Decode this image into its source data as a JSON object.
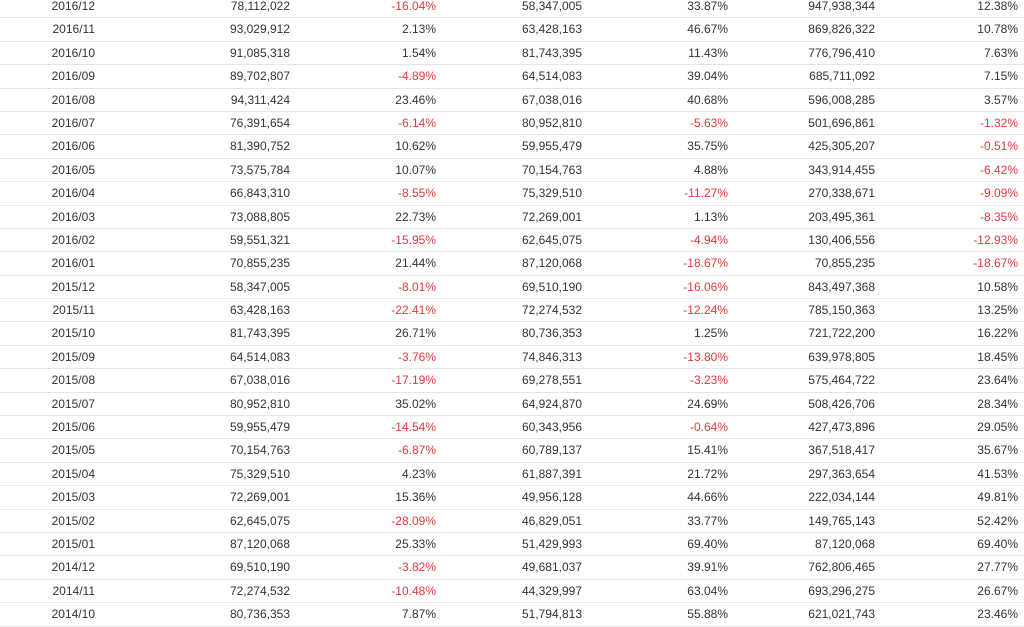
{
  "colors": {
    "negative": "#e4393c",
    "text": "#333333",
    "row_border": "#e6e6e6"
  },
  "rows": [
    [
      "2016/12",
      "78,112,022",
      "-16.04%",
      "58,347,005",
      "33.87%",
      "947,938,344",
      "12.38%"
    ],
    [
      "2016/11",
      "93,029,912",
      "2.13%",
      "63,428,163",
      "46.67%",
      "869,826,322",
      "10.78%"
    ],
    [
      "2016/10",
      "91,085,318",
      "1.54%",
      "81,743,395",
      "11.43%",
      "776,796,410",
      "7.63%"
    ],
    [
      "2016/09",
      "89,702,807",
      "-4.89%",
      "64,514,083",
      "39.04%",
      "685,711,092",
      "7.15%"
    ],
    [
      "2016/08",
      "94,311,424",
      "23.46%",
      "67,038,016",
      "40.68%",
      "596,008,285",
      "3.57%"
    ],
    [
      "2016/07",
      "76,391,654",
      "-6.14%",
      "80,952,810",
      "-5.63%",
      "501,696,861",
      "-1.32%"
    ],
    [
      "2016/06",
      "81,390,752",
      "10.62%",
      "59,955,479",
      "35.75%",
      "425,305,207",
      "-0.51%"
    ],
    [
      "2016/05",
      "73,575,784",
      "10.07%",
      "70,154,763",
      "4.88%",
      "343,914,455",
      "-6.42%"
    ],
    [
      "2016/04",
      "66,843,310",
      "-8.55%",
      "75,329,510",
      "-11.27%",
      "270,338,671",
      "-9.09%"
    ],
    [
      "2016/03",
      "73,088,805",
      "22.73%",
      "72,269,001",
      "1.13%",
      "203,495,361",
      "-8.35%"
    ],
    [
      "2016/02",
      "59,551,321",
      "-15.95%",
      "62,645,075",
      "-4.94%",
      "130,406,556",
      "-12.93%"
    ],
    [
      "2016/01",
      "70,855,235",
      "21.44%",
      "87,120,068",
      "-18.67%",
      "70,855,235",
      "-18.67%"
    ],
    [
      "2015/12",
      "58,347,005",
      "-8.01%",
      "69,510,190",
      "-16.06%",
      "843,497,368",
      "10.58%"
    ],
    [
      "2015/11",
      "63,428,163",
      "-22.41%",
      "72,274,532",
      "-12.24%",
      "785,150,363",
      "13.25%"
    ],
    [
      "2015/10",
      "81,743,395",
      "26.71%",
      "80,736,353",
      "1.25%",
      "721,722,200",
      "16.22%"
    ],
    [
      "2015/09",
      "64,514,083",
      "-3.76%",
      "74,846,313",
      "-13.80%",
      "639,978,805",
      "18.45%"
    ],
    [
      "2015/08",
      "67,038,016",
      "-17.19%",
      "69,278,551",
      "-3.23%",
      "575,464,722",
      "23.64%"
    ],
    [
      "2015/07",
      "80,952,810",
      "35.02%",
      "64,924,870",
      "24.69%",
      "508,426,706",
      "28.34%"
    ],
    [
      "2015/06",
      "59,955,479",
      "-14.54%",
      "60,343,956",
      "-0.64%",
      "427,473,896",
      "29.05%"
    ],
    [
      "2015/05",
      "70,154,763",
      "-6.87%",
      "60,789,137",
      "15.41%",
      "367,518,417",
      "35.67%"
    ],
    [
      "2015/04",
      "75,329,510",
      "4.23%",
      "61,887,391",
      "21.72%",
      "297,363,654",
      "41.53%"
    ],
    [
      "2015/03",
      "72,269,001",
      "15.36%",
      "49,956,128",
      "44.66%",
      "222,034,144",
      "49.81%"
    ],
    [
      "2015/02",
      "62,645,075",
      "-28.09%",
      "46,829,051",
      "33.77%",
      "149,765,143",
      "52.42%"
    ],
    [
      "2015/01",
      "87,120,068",
      "25.33%",
      "51,429,993",
      "69.40%",
      "87,120,068",
      "69.40%"
    ],
    [
      "2014/12",
      "69,510,190",
      "-3.82%",
      "49,681,037",
      "39.91%",
      "762,806,465",
      "27.77%"
    ],
    [
      "2014/11",
      "72,274,532",
      "-10.48%",
      "44,329,997",
      "63.04%",
      "693,296,275",
      "26.67%"
    ],
    [
      "2014/10",
      "80,736,353",
      "7.87%",
      "51,794,813",
      "55.88%",
      "621,021,743",
      "23.46%"
    ]
  ]
}
